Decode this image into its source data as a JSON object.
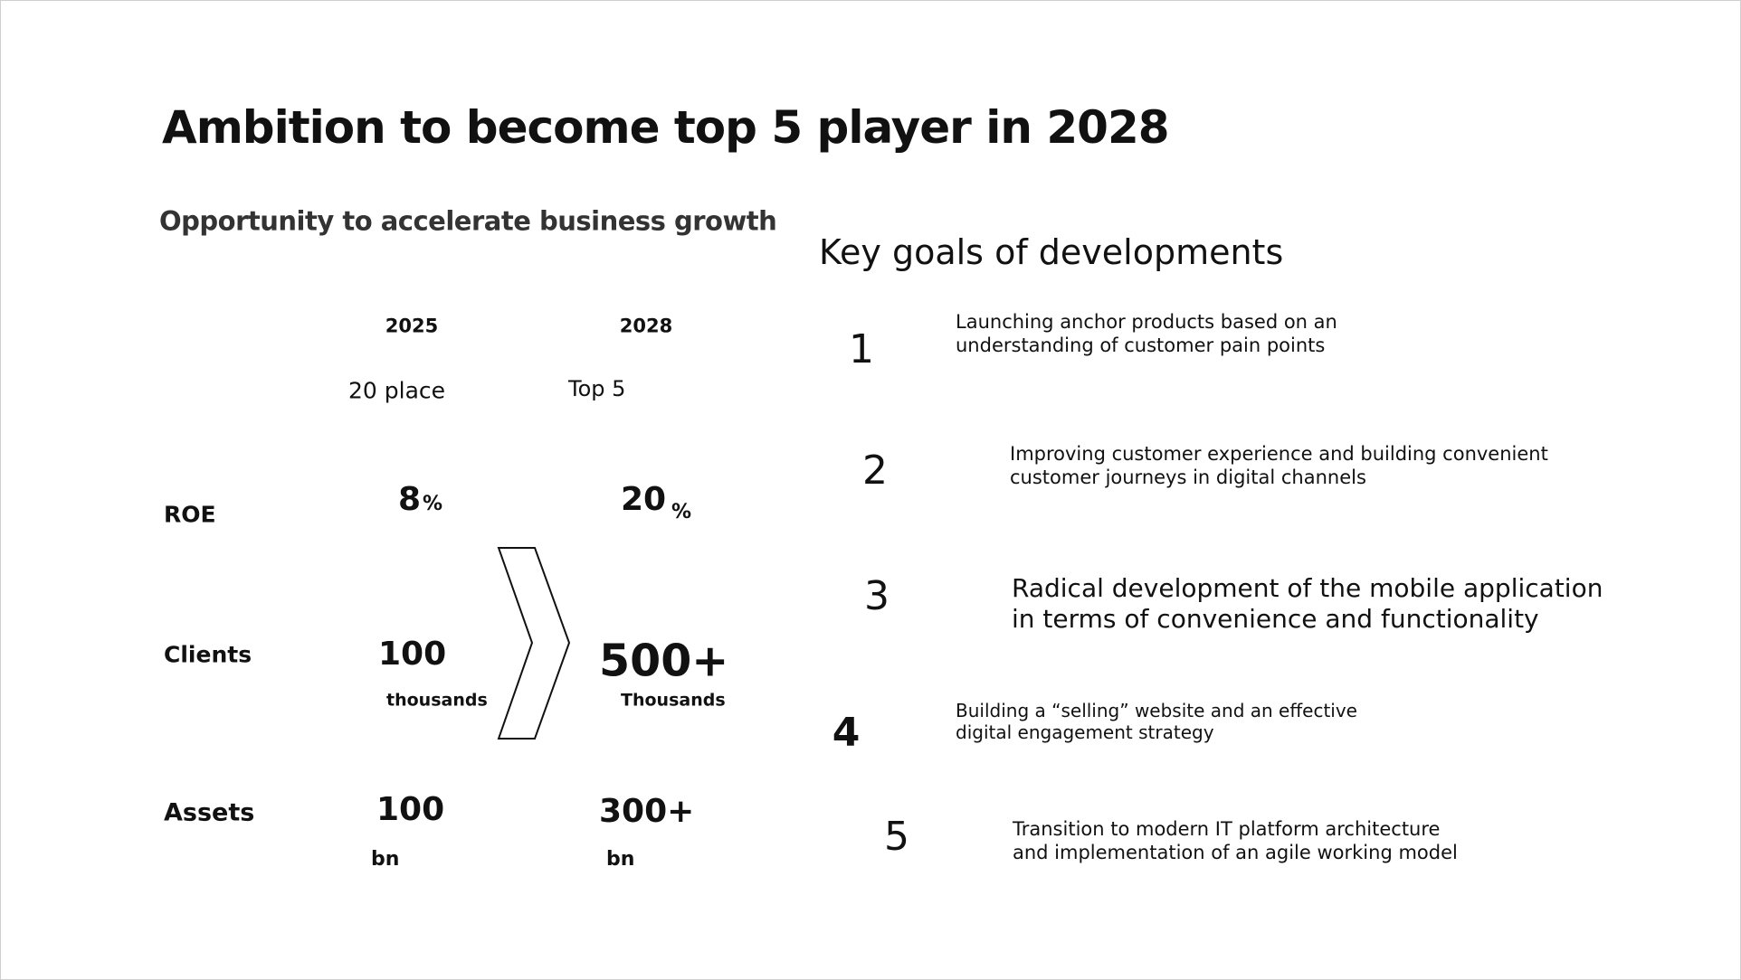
{
  "title": "Ambition to become top 5 player in 2028",
  "left": {
    "heading": "Opportunity to accelerate business growth",
    "columns": [
      "2025",
      "2028"
    ],
    "ranks": [
      "20 place",
      "Top 5"
    ],
    "rows": [
      {
        "label": "ROE",
        "values": [
          {
            "value": "8",
            "unit": "%"
          },
          {
            "value": "20",
            "unit": "%"
          }
        ]
      },
      {
        "label": "Clients",
        "values": [
          {
            "value": "100",
            "unit": "thousands"
          },
          {
            "value": "500+",
            "unit": "Thousands"
          }
        ]
      },
      {
        "label": "Assets",
        "values": [
          {
            "value": "100",
            "unit": "bn"
          },
          {
            "value": "300+",
            "unit": "bn"
          }
        ]
      }
    ]
  },
  "right": {
    "heading": "Key goals of developments",
    "goals": [
      {
        "number": "1",
        "lines": [
          "Launching anchor products based on an",
          "understanding of customer pain points"
        ]
      },
      {
        "number": "2",
        "lines": [
          "Improving customer experience and building convenient",
          "customer journeys in digital channels"
        ]
      },
      {
        "number": "3",
        "lines": [
          "Radical development of the mobile application",
          "in terms of convenience and functionality"
        ]
      },
      {
        "number": "4",
        "lines": [
          "Building a “selling” website and an effective",
          "digital engagement strategy"
        ]
      },
      {
        "number": "5",
        "lines": [
          "Transition to modern IT platform architecture",
          "and implementation of an agile working model"
        ]
      }
    ]
  }
}
